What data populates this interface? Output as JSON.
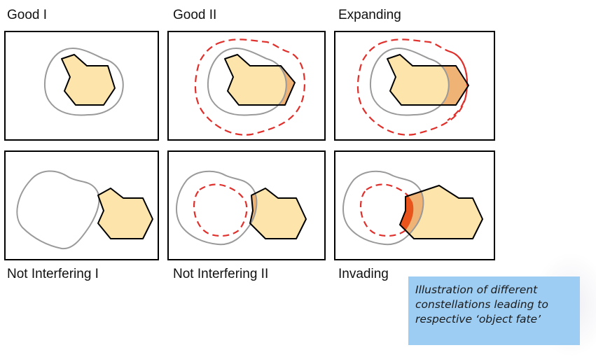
{
  "panels": {
    "good1": {
      "label": "Good I"
    },
    "good2": {
      "label": "Good II"
    },
    "expanding": {
      "label": "Expanding"
    },
    "notInterfering1": {
      "label": "Not Interfering I"
    },
    "notInterfering2": {
      "label": "Not Interfering II"
    },
    "invading": {
      "label": "Invading"
    }
  },
  "caption": {
    "text": "Illustration of different constellations leading to respective ‘object fate’"
  },
  "colors": {
    "object_fill": "#fde4ab",
    "overlap_fill": "#efb375",
    "expansion_fill": "#e9541d",
    "buffer_dashed": "#e0302c",
    "reference_outline": "#9a9a9a",
    "caption_bg": "#9ecdf3"
  }
}
